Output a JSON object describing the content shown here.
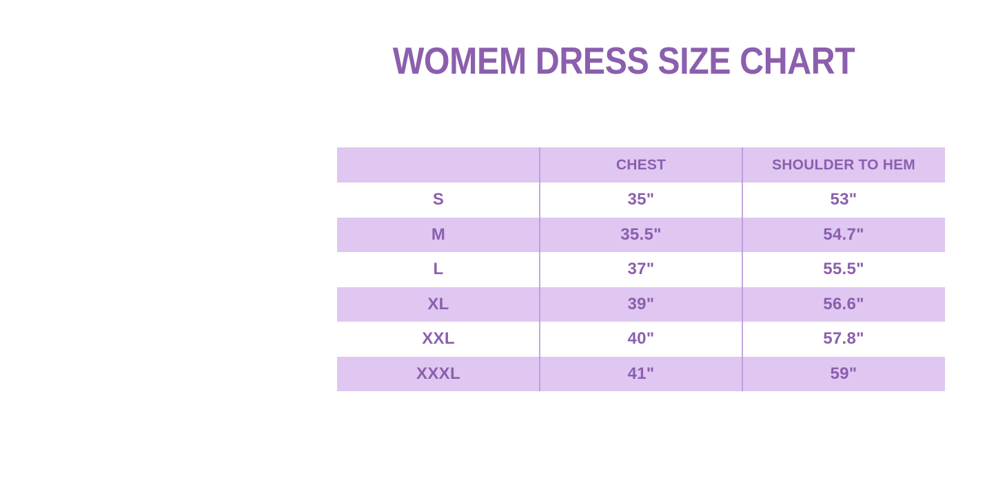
{
  "chart_data": {
    "type": "table",
    "title": "WOMEM DRESS SIZE CHART",
    "columns": [
      "",
      "CHEST",
      "SHOULDER TO HEM"
    ],
    "rows": [
      [
        "S",
        "35\"",
        "53\""
      ],
      [
        "M",
        "35.5\"",
        "54.7\""
      ],
      [
        "L",
        "37\"",
        "55.5\""
      ],
      [
        "XL",
        "39\"",
        "56.6\""
      ],
      [
        "XXL",
        "40\"",
        "57.8\""
      ],
      [
        "XXXL",
        "41\"",
        "59\""
      ]
    ],
    "layout": {
      "legend": "none",
      "grid": "vertical column dividers only",
      "striping": "header lavender, data rows alternate white/lavender starting with white"
    }
  },
  "colors": {
    "accent_purple": "#8B5FAD",
    "band_lavender": "#DFC7F1",
    "divider_purple": "#BA96DB",
    "background": "#FFFFFF"
  }
}
